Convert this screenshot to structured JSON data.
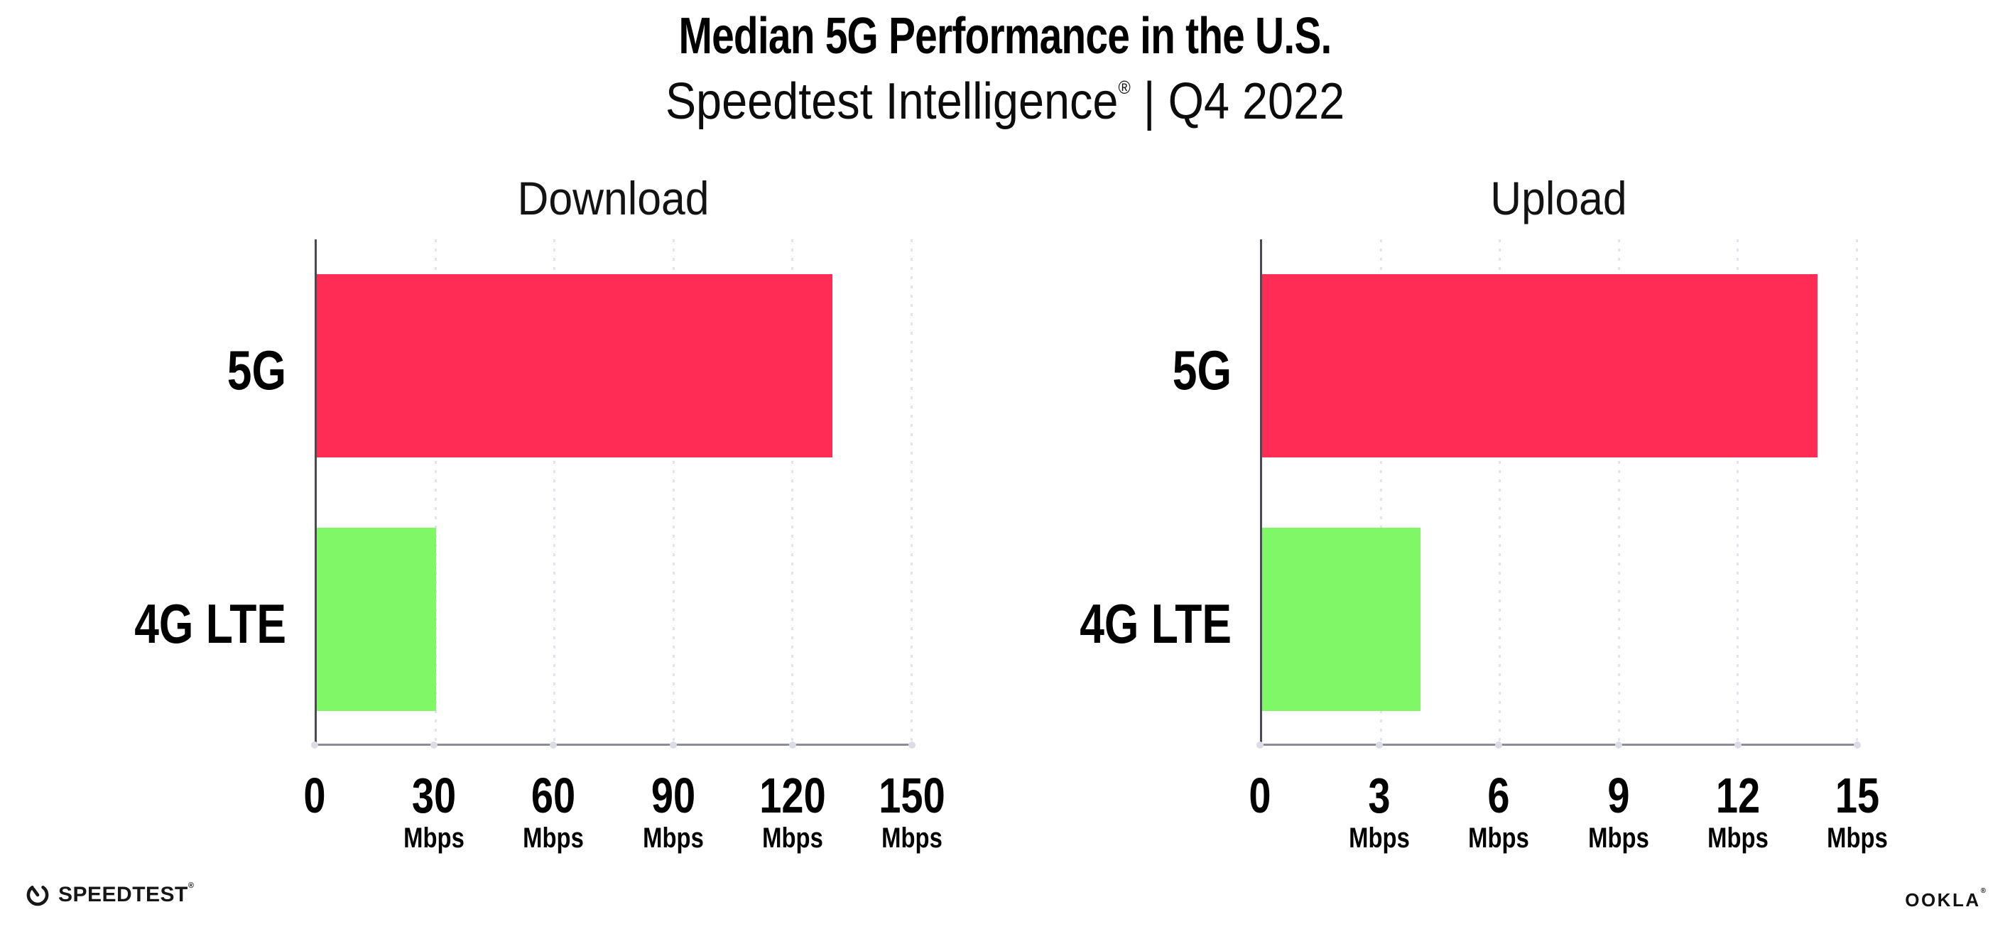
{
  "header": {
    "title": "Median 5G Performance in the U.S.",
    "subtitle_brand": "Speedtest Intelligence",
    "subtitle_reg": "®",
    "subtitle_divider": "|",
    "subtitle_period": "Q4 2022"
  },
  "footer": {
    "speedtest_label": "SPEEDTEST",
    "speedtest_reg": "®",
    "ookla_label": "OOKLA",
    "ookla_reg": "®"
  },
  "colors": {
    "bar_5g": "#ff2d55",
    "bar_4g_lte": "#80f766",
    "gridline": "#e3e3ee",
    "axis_line": "#8d8d96",
    "spine": "#4a4a52",
    "tick_dot": "#dcdce6",
    "text": "#000000"
  },
  "chart_data": [
    {
      "type": "bar",
      "orientation": "horizontal",
      "title": "Download",
      "categories": [
        "5G",
        "4G LTE"
      ],
      "values": [
        130,
        30
      ],
      "unit": "Mbps",
      "xlim": [
        0,
        150
      ],
      "xticks": [
        0,
        30,
        60,
        90,
        120,
        150
      ],
      "bar_colors": [
        "#ff2d55",
        "#80f766"
      ],
      "grid": true,
      "legend": "none"
    },
    {
      "type": "bar",
      "orientation": "horizontal",
      "title": "Upload",
      "categories": [
        "5G",
        "4G LTE"
      ],
      "values": [
        14,
        4
      ],
      "unit": "Mbps",
      "xlim": [
        0,
        15
      ],
      "xticks": [
        0,
        3,
        6,
        9,
        12,
        15
      ],
      "bar_colors": [
        "#ff2d55",
        "#80f766"
      ],
      "grid": true,
      "legend": "none"
    }
  ]
}
